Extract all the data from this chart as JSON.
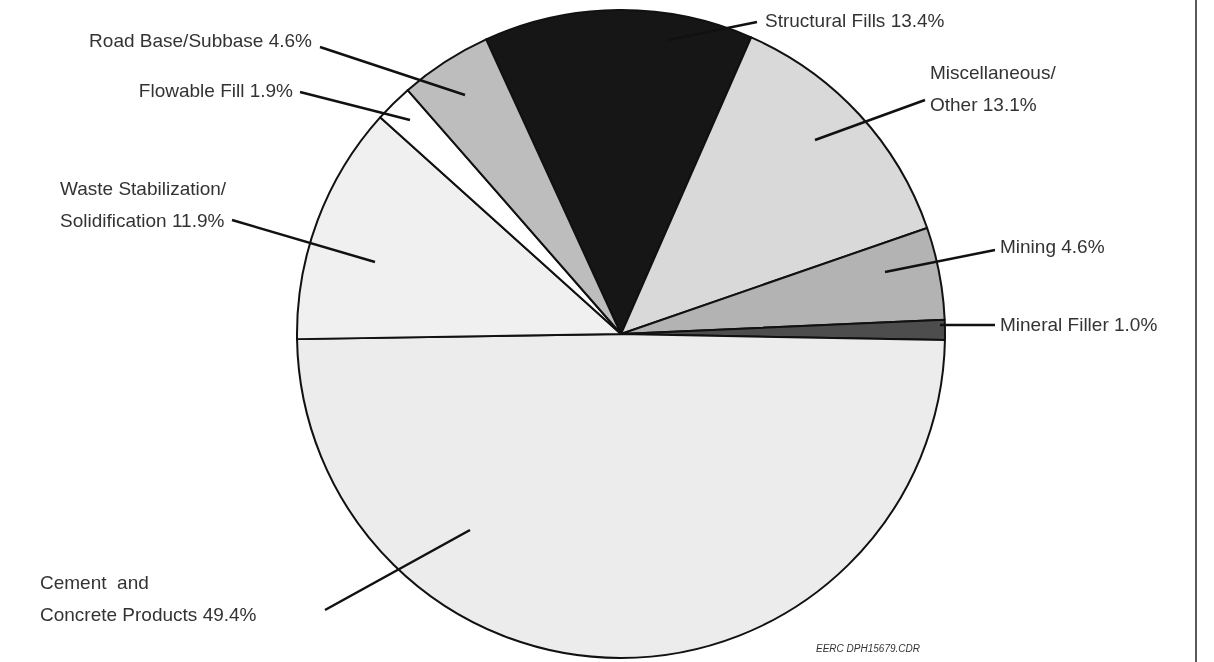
{
  "chart_data": {
    "type": "pie",
    "categories": [
      "Structural Fills",
      "Miscellaneous/\nOther",
      "Mining",
      "Mineral Filler",
      "Cement  and\nConcrete Products",
      "Waste Stabilization/\nSolidification",
      "Flowable Fill",
      "Road Base/Subbase"
    ],
    "values": [
      13.4,
      13.1,
      4.6,
      1.0,
      49.4,
      11.9,
      1.9,
      4.6
    ],
    "value_labels": [
      "13.4%",
      "13.1%",
      "4.6%",
      "1.0%",
      "49.4%",
      "11.9%",
      "1.9%",
      "4.6%"
    ],
    "colors": [
      "#161616",
      "#d9d9d9",
      "#b3b3b3",
      "#4d4d4d",
      "#ececec",
      "#f0f0f0",
      "#ffffff",
      "#bdbdbd"
    ],
    "annotations": [
      "EERC DPH15679.CDR"
    ]
  }
}
